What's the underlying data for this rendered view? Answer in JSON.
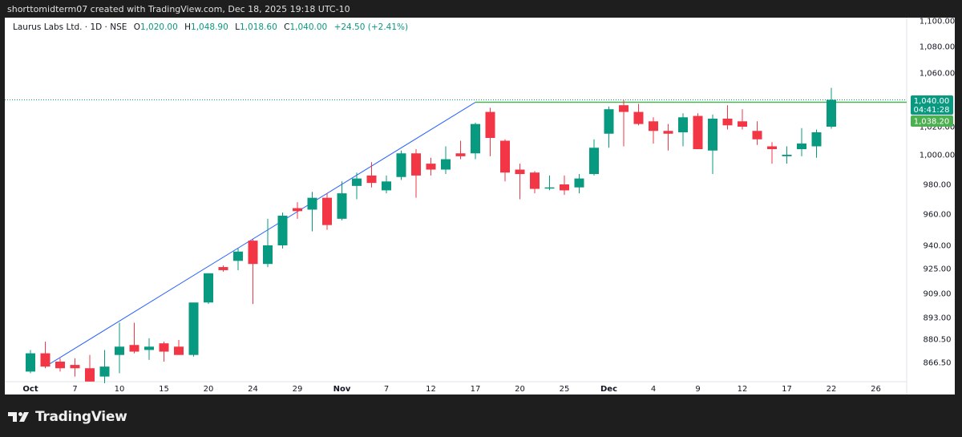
{
  "header": {
    "attribution": "shorttomidterm07 created with TradingView.com, Dec 18, 2025 19:18 UTC-10"
  },
  "legend": {
    "symbol": "Laurus Labs Ltd. · 1D · NSE",
    "o_label": "O",
    "o_value": "1,020.00",
    "h_label": "H",
    "h_value": "1,048.90",
    "l_label": "L",
    "l_value": "1,018.60",
    "c_label": "C",
    "c_value": "1,040.00",
    "change": "+24.50 (+2.41%)"
  },
  "badges": {
    "price": "1,040.00",
    "countdown": "04:41:28",
    "level": "1,038.20"
  },
  "brand": {
    "name": "TradingView",
    "icon": "tradingview-logo-icon"
  },
  "colors": {
    "up": "#089981",
    "down": "#f23645",
    "trendline": "#2962ff",
    "level": "#4caf50",
    "badge_price": "#089981",
    "badge_level": "#4caf50"
  },
  "chart_data": {
    "type": "candlestick",
    "y_ticks": [
      {
        "label": "1,100.00",
        "value": 1100
      },
      {
        "label": "1,080.00",
        "value": 1080
      },
      {
        "label": "1,060.00",
        "value": 1060
      },
      {
        "label": "1,020.00",
        "value": 1020
      },
      {
        "label": "1,000.00",
        "value": 1000
      },
      {
        "label": "980.00",
        "value": 980
      },
      {
        "label": "960.00",
        "value": 960
      },
      {
        "label": "940.00",
        "value": 940
      },
      {
        "label": "925.00",
        "value": 925
      },
      {
        "label": "909.00",
        "value": 909
      },
      {
        "label": "893.00",
        "value": 893
      },
      {
        "label": "880.50",
        "value": 880.5
      },
      {
        "label": "866.50",
        "value": 866.5
      }
    ],
    "x_ticks": [
      {
        "label": "Oct",
        "index": 0,
        "major": true
      },
      {
        "label": "7",
        "index": 3
      },
      {
        "label": "10",
        "index": 6
      },
      {
        "label": "15",
        "index": 9
      },
      {
        "label": "20",
        "index": 12
      },
      {
        "label": "24",
        "index": 15
      },
      {
        "label": "29",
        "index": 18
      },
      {
        "label": "Nov",
        "index": 21,
        "major": true
      },
      {
        "label": "7",
        "index": 24
      },
      {
        "label": "12",
        "index": 27
      },
      {
        "label": "17",
        "index": 30
      },
      {
        "label": "20",
        "index": 33
      },
      {
        "label": "25",
        "index": 36
      },
      {
        "label": "Dec",
        "index": 39,
        "major": true
      },
      {
        "label": "4",
        "index": 42
      },
      {
        "label": "9",
        "index": 45
      },
      {
        "label": "12",
        "index": 48
      },
      {
        "label": "17",
        "index": 51
      },
      {
        "label": "22",
        "index": 54
      },
      {
        "label": "26",
        "index": 57
      }
    ],
    "candles": [
      {
        "o": 861,
        "h": 874,
        "l": 860,
        "c": 872
      },
      {
        "o": 872,
        "h": 879,
        "l": 863,
        "c": 864
      },
      {
        "o": 867,
        "h": 869,
        "l": 861,
        "c": 863
      },
      {
        "o": 865,
        "h": 869,
        "l": 858,
        "c": 863
      },
      {
        "o": 863,
        "h": 871,
        "l": 855,
        "c": 855
      },
      {
        "o": 858,
        "h": 874,
        "l": 854,
        "c": 864
      },
      {
        "o": 871,
        "h": 890,
        "l": 860,
        "c": 876
      },
      {
        "o": 877,
        "h": 890,
        "l": 872,
        "c": 873
      },
      {
        "o": 874,
        "h": 881,
        "l": 868,
        "c": 876
      },
      {
        "o": 878,
        "h": 879,
        "l": 867,
        "c": 873
      },
      {
        "o": 876,
        "h": 880,
        "l": 871,
        "c": 871
      },
      {
        "o": 871,
        "h": 902,
        "l": 870,
        "c": 903
      },
      {
        "o": 903,
        "h": 922,
        "l": 902,
        "c": 922
      },
      {
        "o": 926,
        "h": 927,
        "l": 923,
        "c": 924
      },
      {
        "o": 930,
        "h": 938,
        "l": 924,
        "c": 936
      },
      {
        "o": 943,
        "h": 944,
        "l": 902,
        "c": 928
      },
      {
        "o": 928,
        "h": 957,
        "l": 926,
        "c": 940
      },
      {
        "o": 940,
        "h": 961,
        "l": 938,
        "c": 959
      },
      {
        "o": 964,
        "h": 968,
        "l": 957,
        "c": 962
      },
      {
        "o": 963,
        "h": 975,
        "l": 949,
        "c": 971
      },
      {
        "o": 971,
        "h": 974,
        "l": 950,
        "c": 953
      },
      {
        "o": 957,
        "h": 982,
        "l": 956,
        "c": 974
      },
      {
        "o": 979,
        "h": 988,
        "l": 970,
        "c": 984
      },
      {
        "o": 986,
        "h": 995,
        "l": 978,
        "c": 981
      },
      {
        "o": 976,
        "h": 986,
        "l": 974,
        "c": 982
      },
      {
        "o": 985,
        "h": 1003,
        "l": 983,
        "c": 1001
      },
      {
        "o": 1001,
        "h": 1004,
        "l": 971,
        "c": 986
      },
      {
        "o": 994,
        "h": 998,
        "l": 986,
        "c": 990
      },
      {
        "o": 990,
        "h": 1006,
        "l": 987,
        "c": 997
      },
      {
        "o": 1001,
        "h": 1010,
        "l": 997,
        "c": 999
      },
      {
        "o": 1001,
        "h": 1023,
        "l": 997,
        "c": 1022
      },
      {
        "o": 1031,
        "h": 1034,
        "l": 999,
        "c": 1012
      },
      {
        "o": 1010,
        "h": 1011,
        "l": 982,
        "c": 988
      },
      {
        "o": 990,
        "h": 994,
        "l": 970,
        "c": 987
      },
      {
        "o": 988,
        "h": 989,
        "l": 974,
        "c": 977
      },
      {
        "o": 978,
        "h": 986,
        "l": 976,
        "c": 978
      },
      {
        "o": 980,
        "h": 986,
        "l": 973,
        "c": 976
      },
      {
        "o": 978,
        "h": 987,
        "l": 974,
        "c": 984
      },
      {
        "o": 987,
        "h": 1011,
        "l": 986,
        "c": 1005
      },
      {
        "o": 1015,
        "h": 1035,
        "l": 1005,
        "c": 1033
      },
      {
        "o": 1036,
        "h": 1040,
        "l": 1006,
        "c": 1031
      },
      {
        "o": 1031,
        "h": 1037,
        "l": 1021,
        "c": 1022
      },
      {
        "o": 1024,
        "h": 1027,
        "l": 1008,
        "c": 1017
      },
      {
        "o": 1017,
        "h": 1022,
        "l": 1003,
        "c": 1015
      },
      {
        "o": 1016,
        "h": 1030,
        "l": 1006,
        "c": 1027
      },
      {
        "o": 1028,
        "h": 1030,
        "l": 1004,
        "c": 1004
      },
      {
        "o": 1003,
        "h": 1029,
        "l": 987,
        "c": 1026
      },
      {
        "o": 1026,
        "h": 1036,
        "l": 1018,
        "c": 1021
      },
      {
        "o": 1024,
        "h": 1033,
        "l": 1018,
        "c": 1020
      },
      {
        "o": 1017,
        "h": 1024,
        "l": 1007,
        "c": 1011
      },
      {
        "o": 1006,
        "h": 1009,
        "l": 994,
        "c": 1004
      },
      {
        "o": 999,
        "h": 1006,
        "l": 994,
        "c": 1000
      },
      {
        "o": 1004,
        "h": 1019,
        "l": 999,
        "c": 1008
      },
      {
        "o": 1006,
        "h": 1018,
        "l": 998,
        "c": 1016
      },
      {
        "o": 1020,
        "h": 1048.9,
        "l": 1018.6,
        "c": 1040
      }
    ],
    "trendline": {
      "from": {
        "index": 1,
        "value": 864
      },
      "to": {
        "index": 30,
        "value": 1038.2
      }
    },
    "level_line": {
      "from_index": 30,
      "value": 1038.2
    },
    "last_price_line": 1040
  }
}
